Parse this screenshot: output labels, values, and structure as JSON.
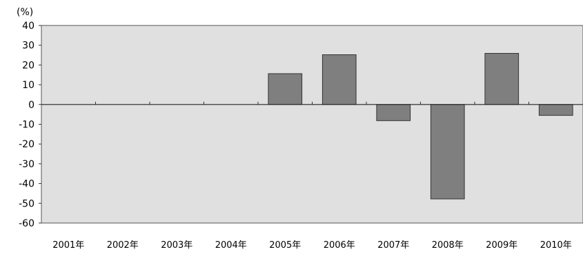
{
  "chart_data": {
    "type": "bar",
    "unit_label": "(%)",
    "categories": [
      "2001年",
      "2002年",
      "2003年",
      "2004年",
      "2005年",
      "2006年",
      "2007年",
      "2008年",
      "2009年",
      "2010年"
    ],
    "values": [
      null,
      null,
      null,
      null,
      15.6,
      25.2,
      -8.2,
      -47.8,
      25.9,
      -5.5
    ],
    "yticks": [
      40,
      30,
      20,
      10,
      0,
      -10,
      -20,
      -30,
      -40,
      -50,
      -60
    ],
    "ylim": [
      -60,
      40
    ],
    "plot_background": "#e0e0e0",
    "bar_color": "#7f7f7f",
    "grid": false,
    "legend": "none"
  }
}
